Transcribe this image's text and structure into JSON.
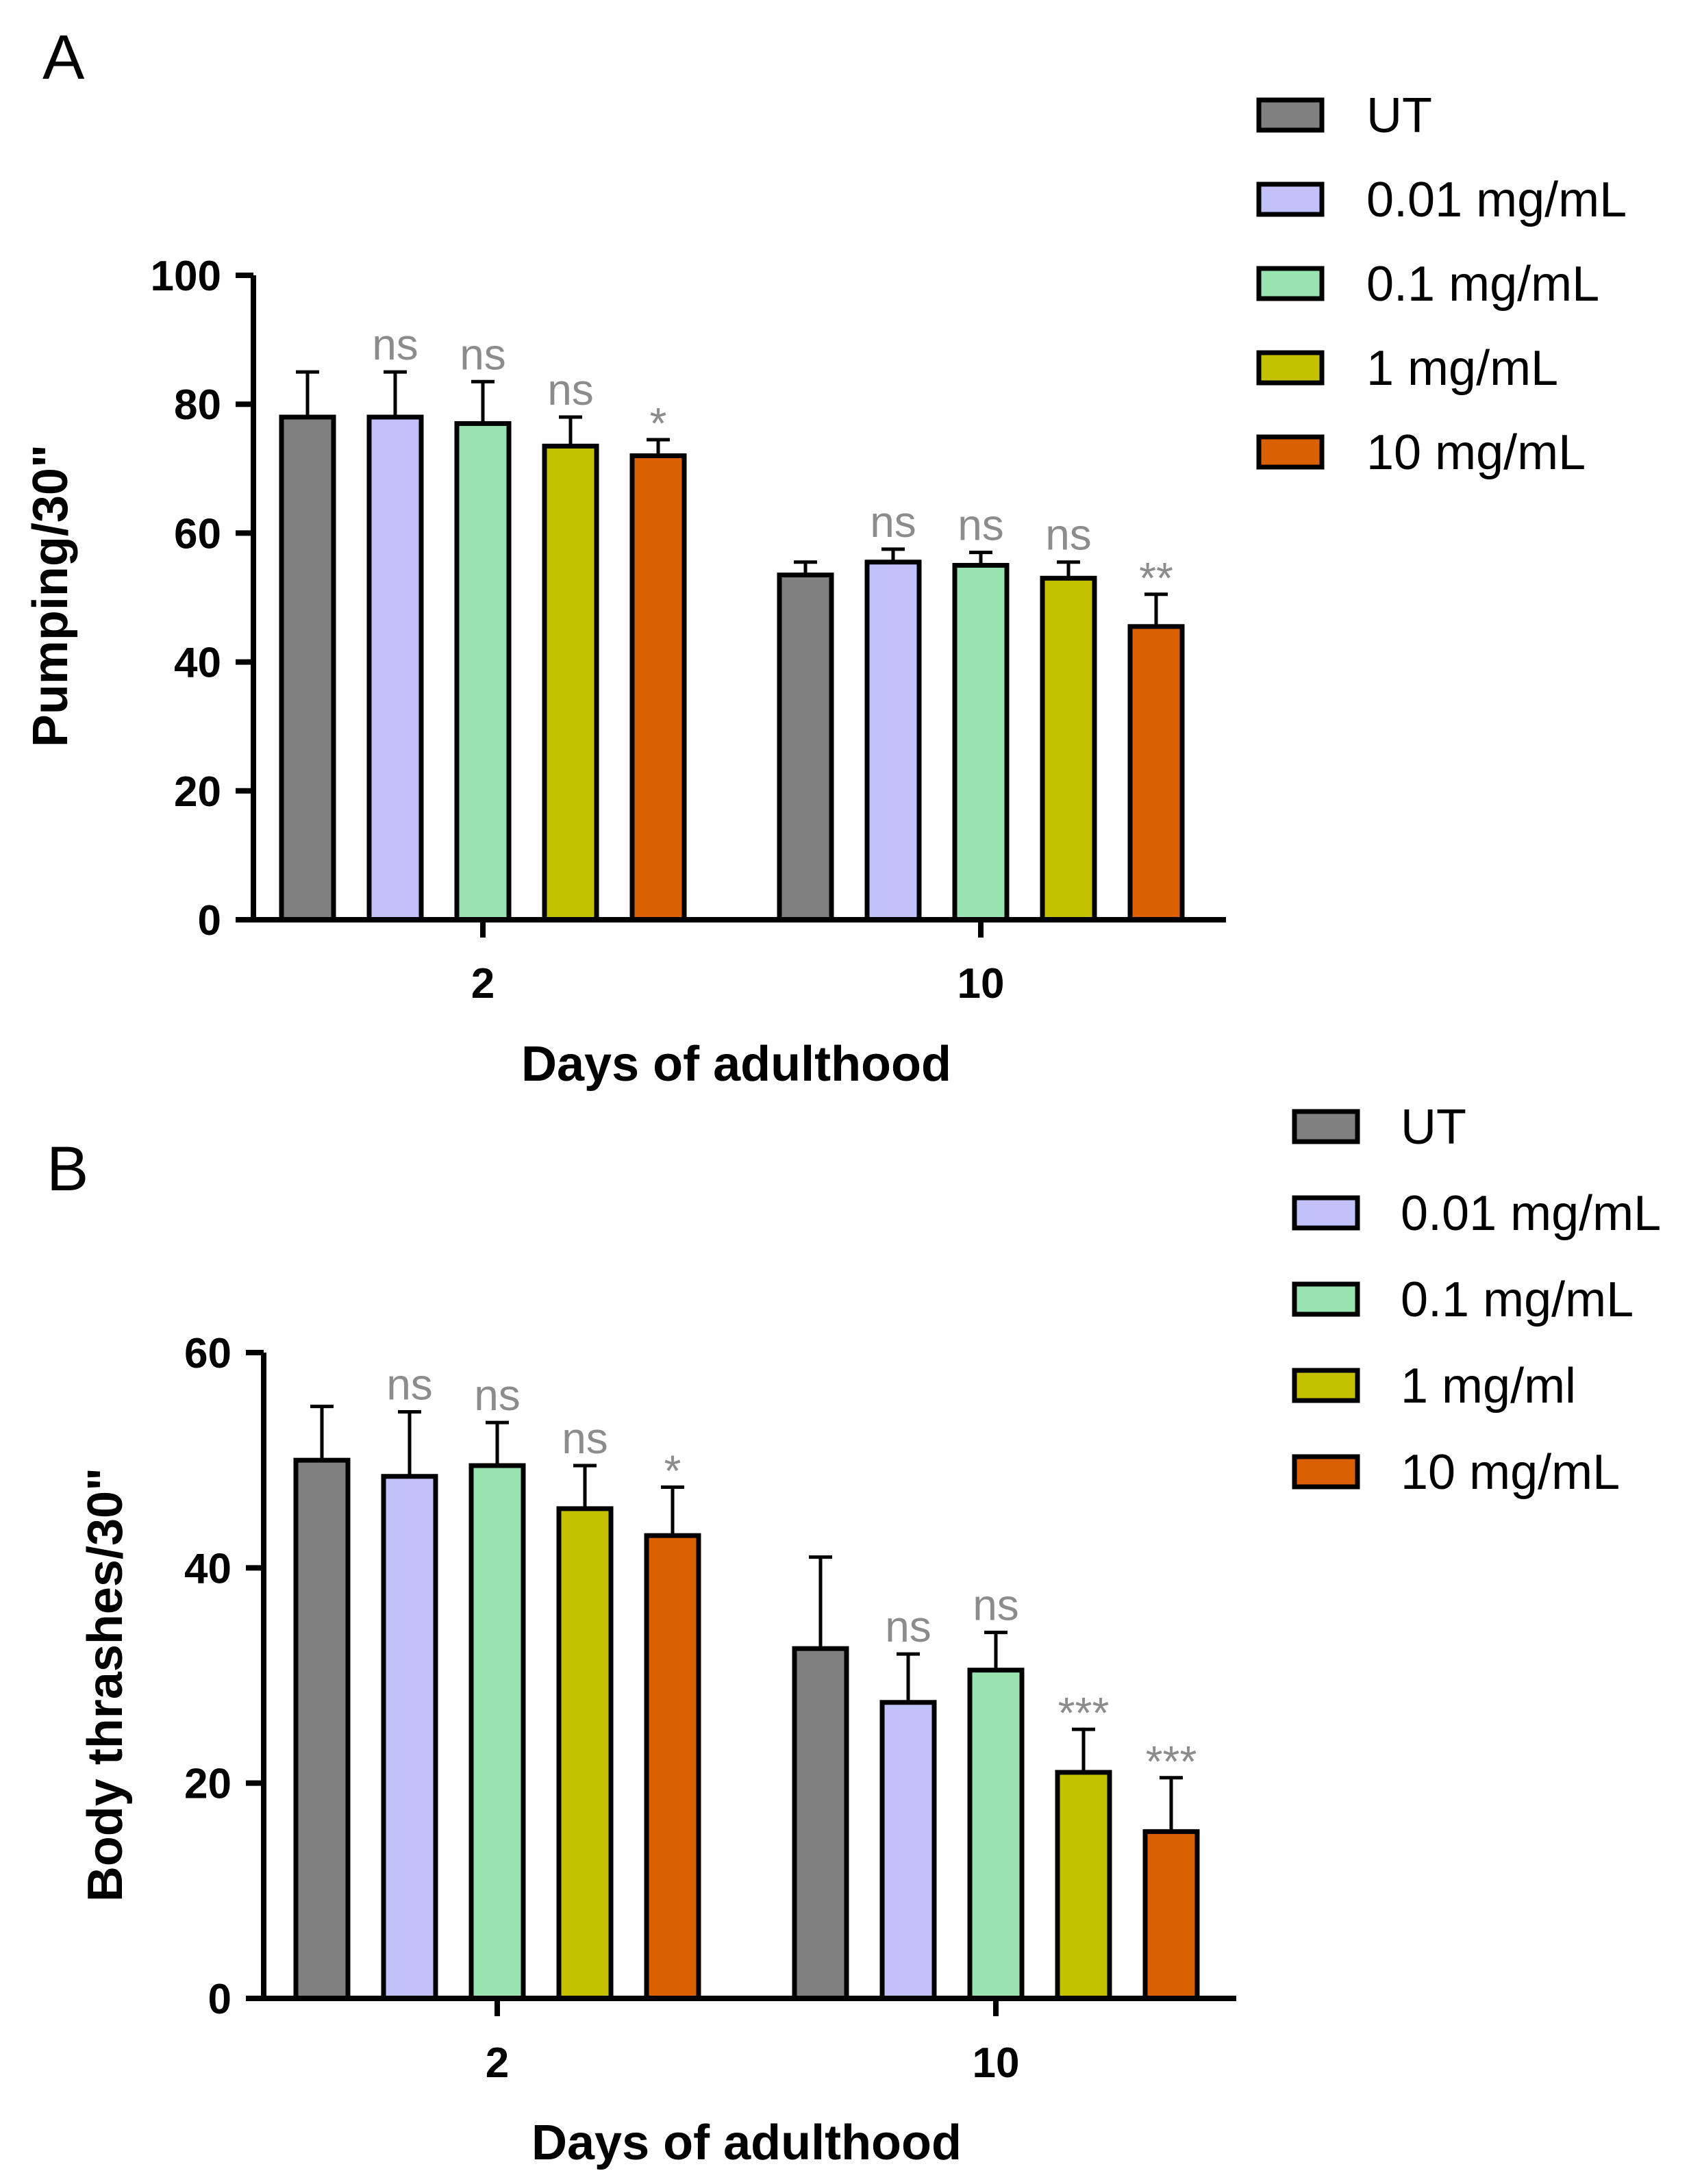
{
  "colors": {
    "UT": "#808080",
    "c001": "#c2c2fb",
    "c01": "#98e3b0",
    "c1": "#c4c200",
    "c10": "#db6000"
  },
  "chart_data": [
    {
      "type": "bar",
      "panel_label": "A",
      "xlabel": "Days of adulthood",
      "ylabel": "Pumping/30\"",
      "categories": [
        "2",
        "10"
      ],
      "ylim": [
        0,
        100
      ],
      "yticks": [
        "0",
        "20",
        "40",
        "60",
        "80",
        "100"
      ],
      "legend_position": "top-right",
      "series": [
        {
          "name": "UT",
          "color_key": "UT",
          "values": [
            78,
            53.5
          ],
          "errors": [
            7,
            2
          ],
          "significance": [
            "",
            ""
          ]
        },
        {
          "name": "0.01 mg/mL",
          "color_key": "c001",
          "values": [
            78,
            55.5
          ],
          "errors": [
            7,
            2
          ],
          "significance": [
            "ns",
            "ns"
          ]
        },
        {
          "name": "0.1 mg/mL",
          "color_key": "c01",
          "values": [
            77,
            55
          ],
          "errors": [
            6.5,
            2
          ],
          "significance": [
            "ns",
            "ns"
          ]
        },
        {
          "name": "1 mg/mL",
          "color_key": "c1",
          "values": [
            73.5,
            53
          ],
          "errors": [
            4.5,
            2.5
          ],
          "significance": [
            "ns",
            "ns"
          ]
        },
        {
          "name": "10 mg/mL",
          "color_key": "c10",
          "values": [
            72,
            45.5
          ],
          "errors": [
            2.5,
            5
          ],
          "significance": [
            "*",
            "**"
          ]
        }
      ]
    },
    {
      "type": "bar",
      "panel_label": "B",
      "xlabel": "Days of adulthood",
      "ylabel": "Body thrashes/30\"",
      "categories": [
        "2",
        "10"
      ],
      "ylim": [
        0,
        60
      ],
      "yticks": [
        "0",
        "20",
        "40",
        "60"
      ],
      "legend_position": "top-right",
      "series": [
        {
          "name": "UT",
          "color_key": "UT",
          "values": [
            50,
            32.5
          ],
          "errors": [
            5,
            8.5
          ],
          "significance": [
            "",
            ""
          ]
        },
        {
          "name": "0.01 mg/mL",
          "color_key": "c001",
          "values": [
            48.5,
            27.5
          ],
          "errors": [
            6,
            4.5
          ],
          "significance": [
            "ns",
            "ns"
          ]
        },
        {
          "name": "0.1 mg/mL",
          "color_key": "c01",
          "values": [
            49.5,
            30.5
          ],
          "errors": [
            4,
            3.5
          ],
          "significance": [
            "ns",
            "ns"
          ]
        },
        {
          "name": "1 mg/ml",
          "color_key": "c1",
          "values": [
            45.5,
            21
          ],
          "errors": [
            4,
            4
          ],
          "significance": [
            "ns",
            "***"
          ]
        },
        {
          "name": "10 mg/mL",
          "color_key": "c10",
          "values": [
            43,
            15.5
          ],
          "errors": [
            4.5,
            5
          ],
          "significance": [
            "*",
            "***"
          ]
        }
      ]
    }
  ]
}
